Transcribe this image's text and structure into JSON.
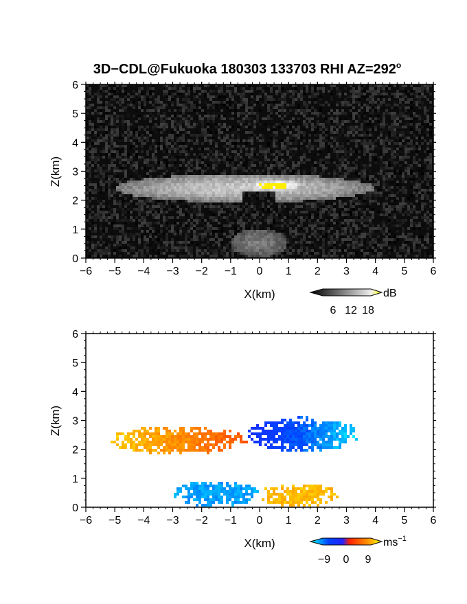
{
  "title": "3D−CDL@Fukuoka 180303 133703 RHI AZ=292",
  "title_degree": "o",
  "chart_data": [
    {
      "type": "heatmap",
      "name": "reflectivity",
      "xlabel": "X(km)",
      "ylabel": "Z(km)",
      "xlim": [
        -6,
        6
      ],
      "ylim": [
        0,
        6
      ],
      "xticks": [
        "−6",
        "−5",
        "−4",
        "−3",
        "−2",
        "−1",
        "0",
        "1",
        "2",
        "3",
        "4",
        "5",
        "6"
      ],
      "yticks": [
        "0",
        "1",
        "2",
        "3",
        "4",
        "5",
        "6"
      ],
      "background": "noise",
      "colorbar": {
        "label": "dB",
        "ticks": [
          "6",
          "12",
          "18"
        ],
        "range": [
          0,
          21
        ]
      },
      "features": [
        {
          "x": [
            -5.0,
            4.0
          ],
          "z": [
            1.9,
            2.9
          ],
          "value": 14,
          "desc": "echo layer"
        },
        {
          "x": [
            -0.4,
            1.6
          ],
          "z": [
            2.3,
            2.7
          ],
          "value": 20,
          "desc": "strong core"
        },
        {
          "x": [
            -1.0,
            1.0
          ],
          "z": [
            0.0,
            1.0
          ],
          "value": 8,
          "desc": "near-radar fan"
        }
      ]
    },
    {
      "type": "heatmap",
      "name": "doppler_velocity",
      "xlabel": "X(km)",
      "ylabel": "Z(km)",
      "xlim": [
        -6,
        6
      ],
      "ylim": [
        0,
        6
      ],
      "xticks": [
        "−6",
        "−5",
        "−4",
        "−3",
        "−2",
        "−1",
        "0",
        "1",
        "2",
        "3",
        "4",
        "5",
        "6"
      ],
      "yticks": [
        "0",
        "1",
        "2",
        "3",
        "4",
        "5",
        "6"
      ],
      "colorbar": {
        "label": "ms",
        "label_sup": "−1",
        "ticks": [
          "−9",
          "0",
          "9"
        ],
        "range": [
          -12,
          12
        ]
      },
      "features": [
        {
          "x": [
            -5.2,
            -0.4
          ],
          "z": [
            1.8,
            2.8
          ],
          "value": 8,
          "desc": "receding layer (yellow to red)"
        },
        {
          "x": [
            -0.4,
            3.5
          ],
          "z": [
            1.9,
            3.1
          ],
          "value": -6,
          "desc": "approaching layer (blue to cyan)"
        },
        {
          "x": [
            -3.0,
            0.0
          ],
          "z": [
            0.0,
            0.9
          ],
          "value": -9,
          "desc": "low-level approaching"
        },
        {
          "x": [
            0.0,
            2.8
          ],
          "z": [
            0.0,
            0.8
          ],
          "value": 9,
          "desc": "low-level receding"
        }
      ]
    }
  ]
}
